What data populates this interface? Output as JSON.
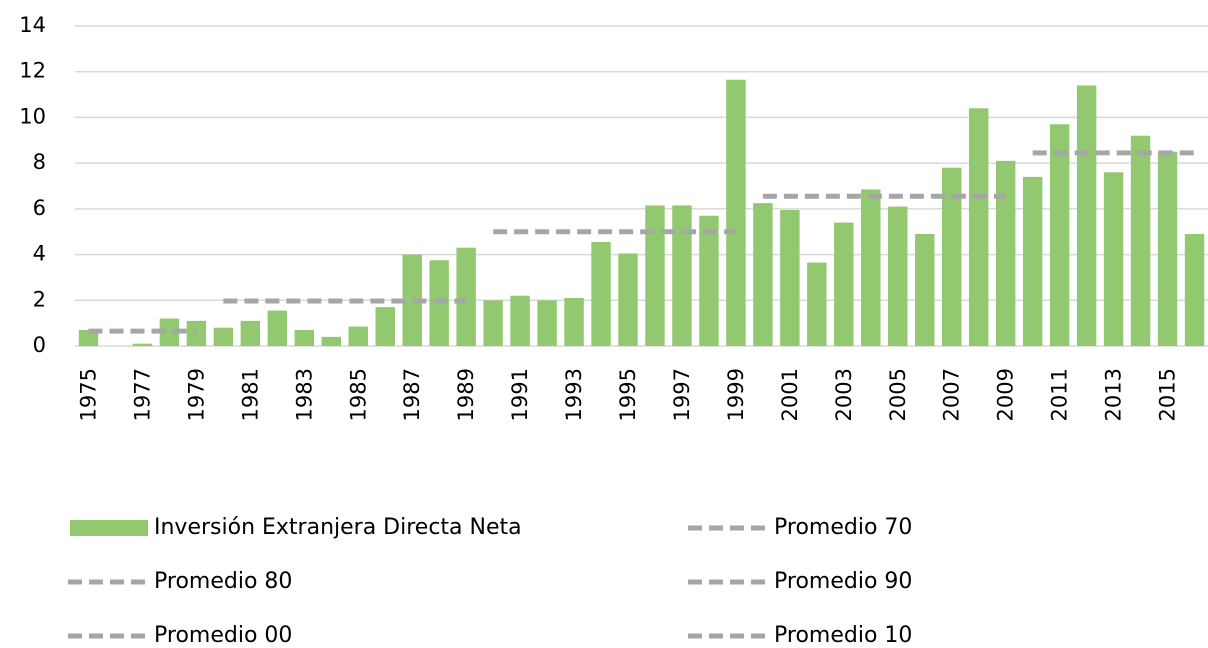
{
  "chart_data": {
    "type": "bar",
    "categories": [
      "1975",
      null,
      "1977",
      null,
      "1979",
      null,
      "1981",
      null,
      "1983",
      null,
      "1985",
      null,
      "1987",
      null,
      "1989",
      null,
      "1991",
      null,
      "1993",
      null,
      "1995",
      null,
      "1997",
      null,
      "1999",
      null,
      "2001",
      null,
      "2003",
      null,
      "2005",
      null,
      "2007",
      null,
      "2009",
      null,
      "2011",
      null,
      "2013",
      null,
      "2015",
      null
    ],
    "series": [
      {
        "name": "Inversión Extranjera Directa Neta",
        "type": "bar",
        "color": "#92c86f",
        "values": [
          0.7,
          0,
          0.1,
          1.2,
          1.1,
          0.8,
          1.1,
          1.55,
          0.7,
          0.4,
          0.85,
          1.7,
          4.0,
          3.75,
          4.3,
          2.0,
          2.2,
          2.0,
          2.1,
          4.55,
          4.05,
          6.15,
          6.15,
          5.7,
          11.65,
          6.25,
          5.95,
          3.65,
          5.4,
          6.85,
          6.1,
          4.9,
          7.8,
          10.4,
          8.1,
          7.4,
          9.7,
          11.4,
          7.6,
          9.2,
          8.5,
          4.9
        ]
      },
      {
        "name": "Promedio 70",
        "type": "line",
        "color": "#a6a6a6",
        "values": [
          0.65,
          0.65,
          0.65,
          0.65,
          0.65,
          null,
          null,
          null,
          null,
          null,
          null,
          null,
          null,
          null,
          null,
          null,
          null,
          null,
          null,
          null,
          null,
          null,
          null,
          null,
          null,
          null,
          null,
          null,
          null,
          null,
          null,
          null,
          null,
          null,
          null,
          null,
          null,
          null,
          null,
          null,
          null,
          null
        ]
      },
      {
        "name": "Promedio 80",
        "type": "line",
        "color": "#a6a6a6",
        "values": [
          null,
          null,
          null,
          null,
          null,
          1.97,
          1.97,
          1.97,
          1.97,
          1.97,
          1.97,
          1.97,
          1.97,
          1.97,
          1.97,
          null,
          null,
          null,
          null,
          null,
          null,
          null,
          null,
          null,
          null,
          null,
          null,
          null,
          null,
          null,
          null,
          null,
          null,
          null,
          null,
          null,
          null,
          null,
          null,
          null,
          null,
          null
        ]
      },
      {
        "name": "Promedio 90",
        "type": "line",
        "color": "#a6a6a6",
        "values": [
          null,
          null,
          null,
          null,
          null,
          null,
          null,
          null,
          null,
          null,
          null,
          null,
          null,
          null,
          null,
          5.0,
          5.0,
          5.0,
          5.0,
          5.0,
          5.0,
          5.0,
          5.0,
          5.0,
          5.0,
          null,
          null,
          null,
          null,
          null,
          null,
          null,
          null,
          null,
          null,
          null,
          null,
          null,
          null,
          null,
          null,
          null
        ]
      },
      {
        "name": "Promedio 00",
        "type": "line",
        "color": "#a6a6a6",
        "values": [
          null,
          null,
          null,
          null,
          null,
          null,
          null,
          null,
          null,
          null,
          null,
          null,
          null,
          null,
          null,
          null,
          null,
          null,
          null,
          null,
          null,
          null,
          null,
          null,
          null,
          6.55,
          6.55,
          6.55,
          6.55,
          6.55,
          6.55,
          6.55,
          6.55,
          6.55,
          6.55,
          null,
          null,
          null,
          null,
          null,
          null,
          null
        ]
      },
      {
        "name": "Promedio 10",
        "type": "line",
        "color": "#a6a6a6",
        "values": [
          null,
          null,
          null,
          null,
          null,
          null,
          null,
          null,
          null,
          null,
          null,
          null,
          null,
          null,
          null,
          null,
          null,
          null,
          null,
          null,
          null,
          null,
          null,
          null,
          null,
          null,
          null,
          null,
          null,
          null,
          null,
          null,
          null,
          null,
          null,
          8.45,
          8.45,
          8.45,
          8.45,
          8.45,
          8.45,
          8.45
        ]
      }
    ],
    "ylim": [
      0,
      14
    ],
    "yticks": [
      0,
      2,
      4,
      6,
      8,
      10,
      12,
      14
    ],
    "grid": true
  }
}
